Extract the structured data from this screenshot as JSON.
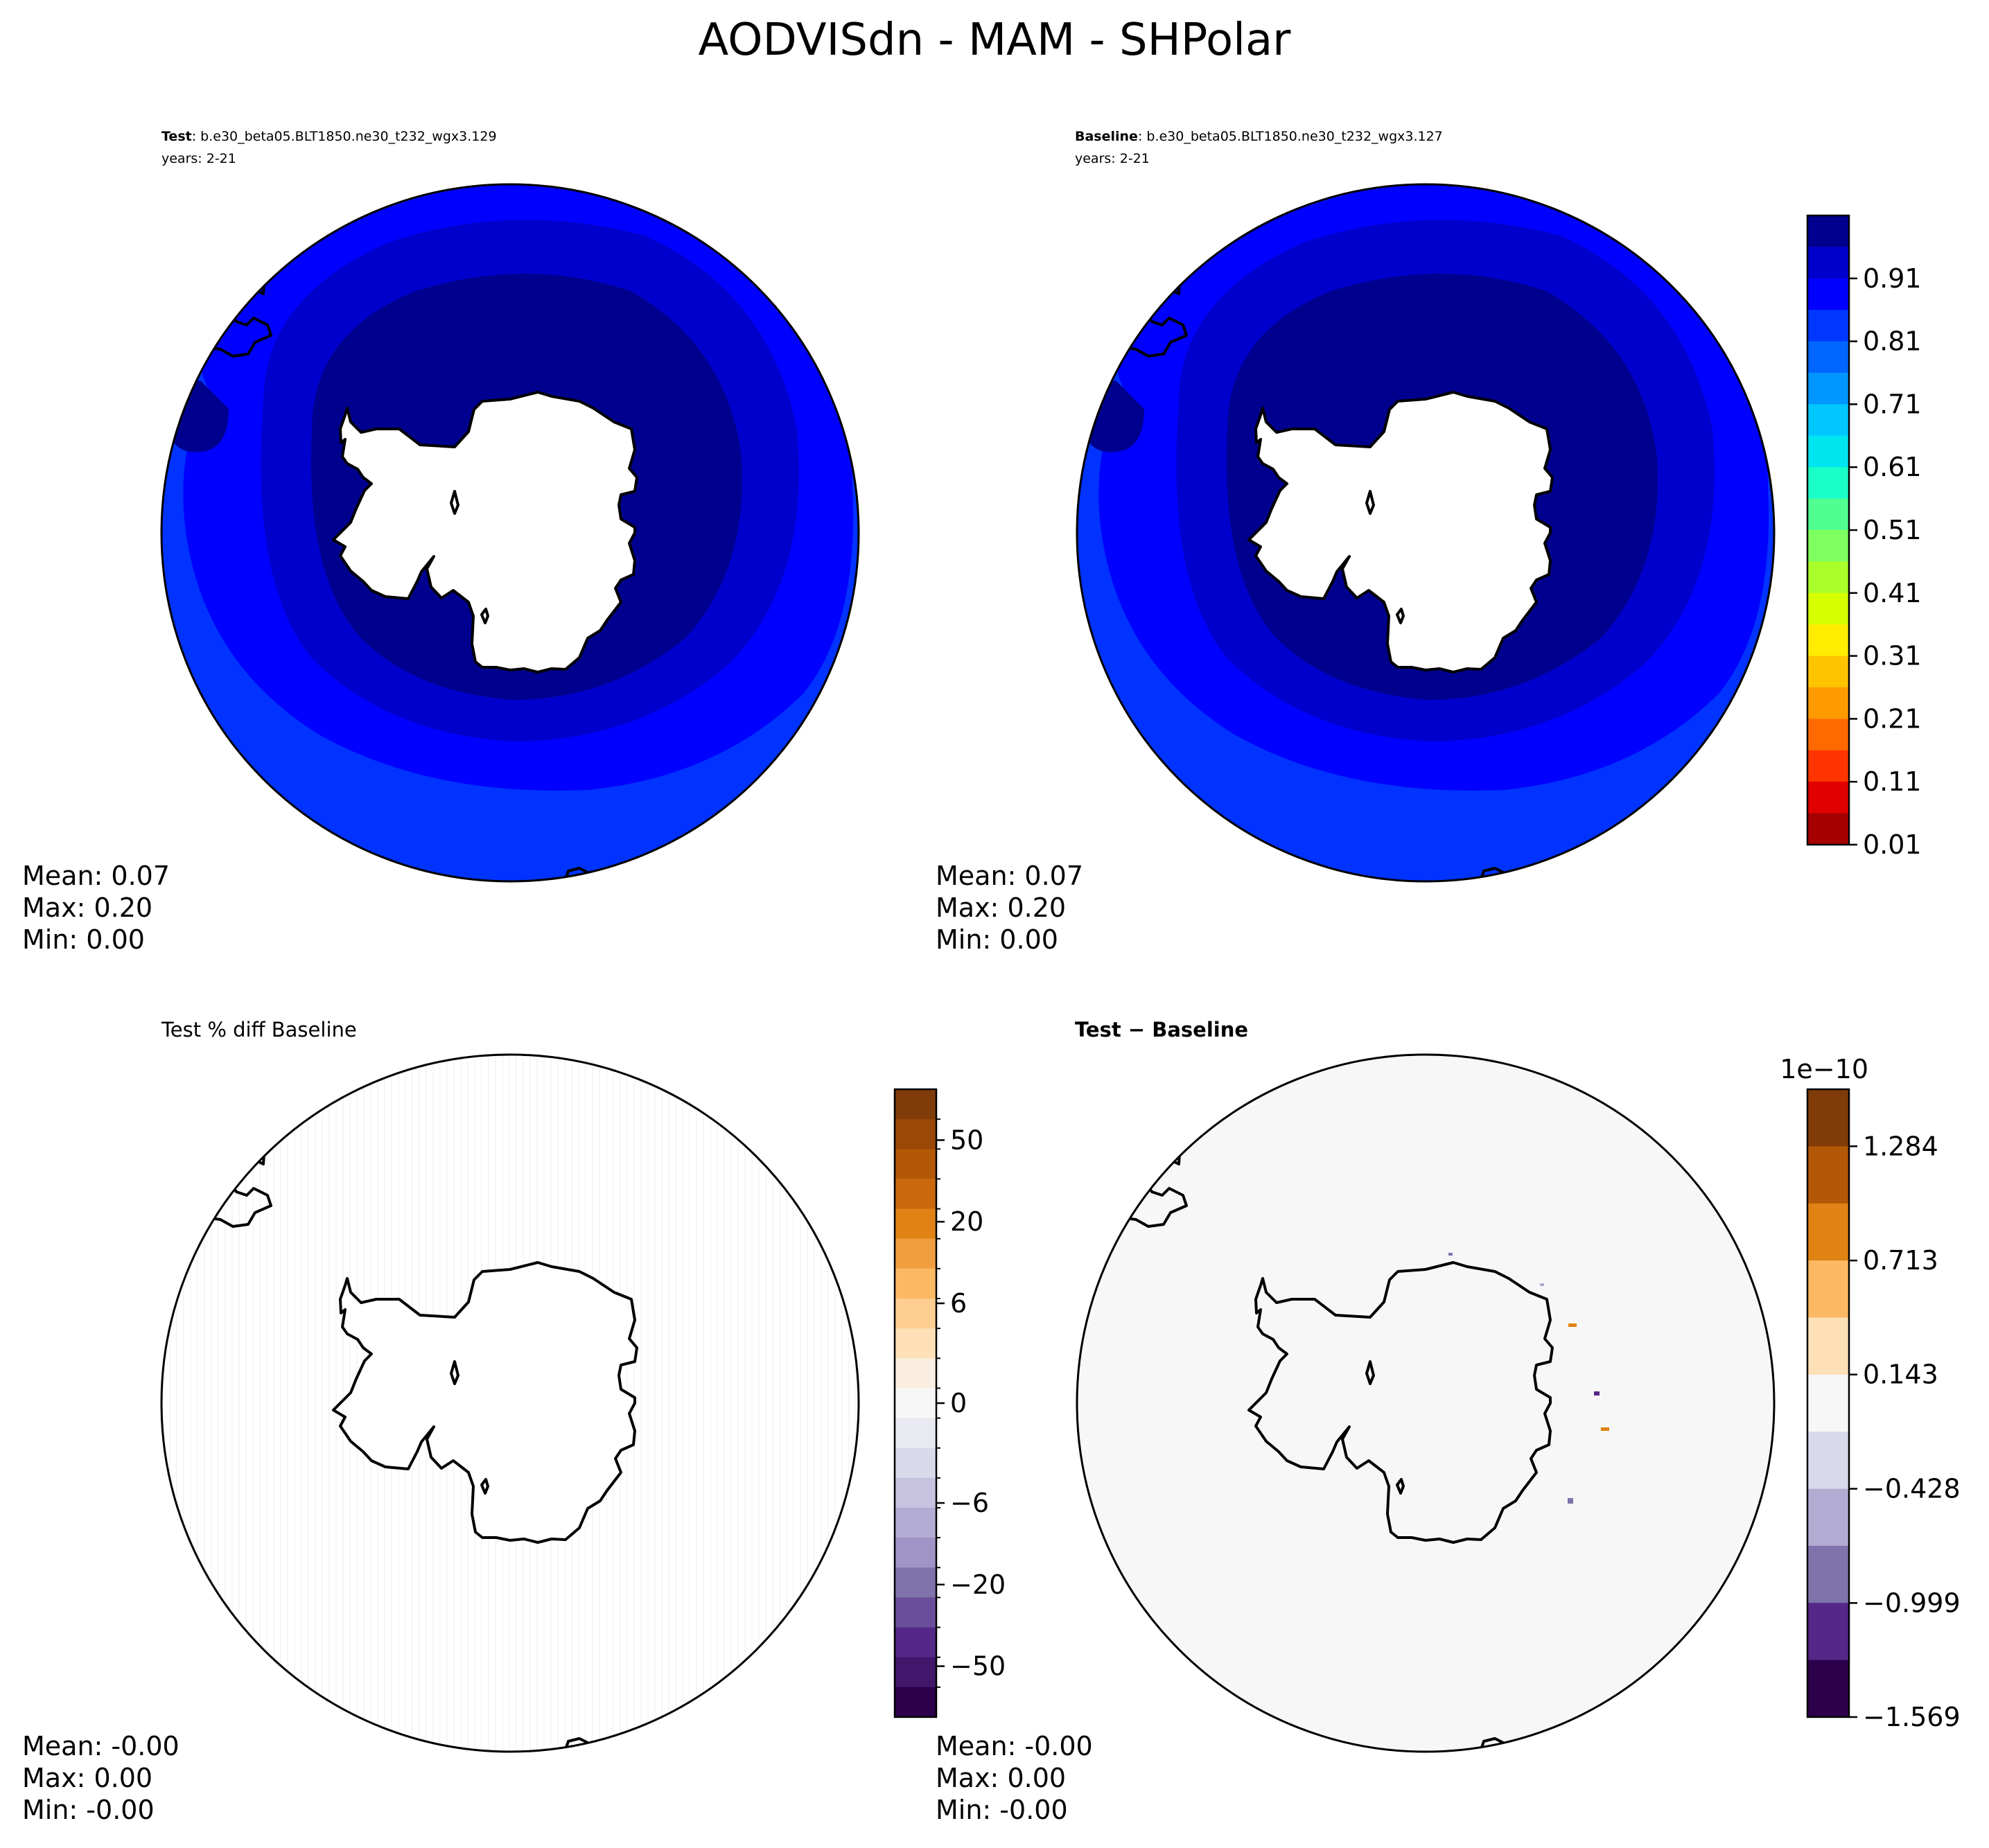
{
  "figure": {
    "suptitle": "AODVISdn - MAM - SHPolar"
  },
  "panels": {
    "test": {
      "title_bold": "Test",
      "title_rest": ": b.e30_beta05.BLT1850.ne30_t232_wgx3.129",
      "years": "years: 2-21",
      "stats": {
        "mean": "Mean:  0.07",
        "max": "Max:  0.20",
        "min": "Min:  0.00"
      }
    },
    "baseline": {
      "title_bold": "Baseline",
      "title_rest": ": b.e30_beta05.BLT1850.ne30_t232_wgx3.127",
      "years": "years: 2-21",
      "stats": {
        "mean": "Mean:  0.07",
        "max": "Max:  0.20",
        "min": "Min:  0.00"
      }
    },
    "pct_diff": {
      "title": "Test % diff Baseline",
      "stats": {
        "mean": "Mean: -0.00",
        "max": "Max:  0.00",
        "min": "Min: -0.00"
      }
    },
    "diff": {
      "title": "Test − Baseline",
      "stats": {
        "mean": "Mean: -0.00",
        "max": "Max:  0.00",
        "min": "Min: -0.00"
      }
    }
  },
  "chart_data": [
    {
      "type": "heatmap",
      "name": "test",
      "projection": "south-polar-stereographic",
      "variable": "AODVISdn",
      "season": "MAM",
      "levels": [
        0.01,
        0.06,
        0.11,
        0.16,
        0.21
      ],
      "level_colors": [
        "#00008f",
        "#0000cc",
        "#0000ff",
        "#0037ff",
        "#0066ff"
      ],
      "mean": 0.07,
      "max": 0.2,
      "min": 0.0
    },
    {
      "type": "heatmap",
      "name": "baseline",
      "projection": "south-polar-stereographic",
      "variable": "AODVISdn",
      "season": "MAM",
      "levels": [
        0.01,
        0.06,
        0.11,
        0.16,
        0.21
      ],
      "level_colors": [
        "#00008f",
        "#0000cc",
        "#0000ff",
        "#0037ff",
        "#0066ff"
      ],
      "mean": 0.07,
      "max": 0.2,
      "min": 0.0
    },
    {
      "type": "heatmap",
      "name": "pct_diff",
      "projection": "south-polar-stereographic",
      "mean": -0.0,
      "max": 0.0,
      "min": -0.0
    },
    {
      "type": "heatmap",
      "name": "diff",
      "projection": "south-polar-stereographic",
      "mean": -0.0,
      "max": 0.0,
      "min": -0.0
    }
  ],
  "colorbars": {
    "main": {
      "range": [
        0.01,
        1.01
      ],
      "ticks": [
        "0.01",
        "0.11",
        "0.21",
        "0.31",
        "0.41",
        "0.51",
        "0.61",
        "0.71",
        "0.81",
        "0.91"
      ],
      "tick_values": [
        0.01,
        0.11,
        0.21,
        0.31,
        0.41,
        0.51,
        0.61,
        0.71,
        0.81,
        0.91
      ],
      "colors": [
        "#00008f",
        "#0000cc",
        "#0000ff",
        "#0037ff",
        "#0066ff",
        "#0096ff",
        "#00c8ff",
        "#00e6f0",
        "#1affc8",
        "#50ff90",
        "#80ff60",
        "#aaff2a",
        "#d6ff00",
        "#ffec00",
        "#ffc400",
        "#ff9a00",
        "#ff6a00",
        "#ff3400",
        "#e00000",
        "#a60000"
      ]
    },
    "pct": {
      "ticks": [
        "50",
        "20",
        "6",
        "0",
        "−6",
        "−20",
        "−50"
      ],
      "tick_positions": [
        0.081,
        0.211,
        0.341,
        0.5,
        0.659,
        0.789,
        0.919
      ],
      "colors": [
        "#7f3b08",
        "#9a4707",
        "#b35806",
        "#cb680d",
        "#e08214",
        "#f09e3f",
        "#fdb863",
        "#fecd90",
        "#fee0b6",
        "#faeee0",
        "#f7f7f7",
        "#e8e9f1",
        "#d8daeb",
        "#c6c2df",
        "#b2abd2",
        "#9f94c5",
        "#8073ac",
        "#6b4e9b",
        "#542788",
        "#41166b",
        "#2d004b"
      ]
    },
    "diff": {
      "offset_label": "1e−10",
      "ticks": [
        "1.284",
        "0.713",
        "0.143",
        "−0.428",
        "−0.999",
        "−1.569"
      ],
      "tick_values": [
        1.284,
        0.713,
        0.143,
        -0.428,
        -0.999,
        -1.569
      ],
      "range": [
        -1.569,
        1.569
      ],
      "colors": [
        "#7f3b08",
        "#b35806",
        "#e08214",
        "#fdb863",
        "#fee0b6",
        "#f7f7f7",
        "#d8daeb",
        "#b2abd2",
        "#8073ac",
        "#542788",
        "#2d004b"
      ]
    }
  }
}
